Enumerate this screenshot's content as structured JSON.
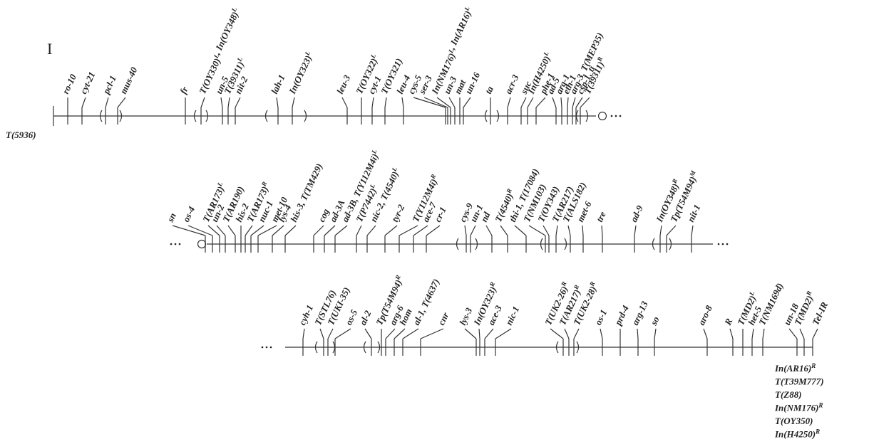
{
  "chromosome": "I",
  "left_note": "T(5936)",
  "rows": [
    {
      "loci": [
        "ro-10",
        "cyt-21",
        "pcl-1",
        "mus-40",
        "fr",
        [
          [
            "T(OY330)",
            "L"
          ],
          [
            ", In(OY348)",
            "L"
          ]
        ],
        "un-5",
        [
          [
            "T(39311)",
            "L"
          ]
        ],
        "nit-2",
        "lah-1",
        [
          [
            "In(OY323)",
            "L"
          ]
        ],
        "leu-3",
        [
          [
            "T(OY322)",
            "L"
          ]
        ],
        "cyt-1",
        "T(OY321)",
        "leu-4",
        "cys-5",
        "ser-3",
        [
          [
            "In(NM176)",
            "L"
          ],
          [
            ", In(AR16)",
            "L"
          ]
        ],
        "un-3",
        "mat",
        "un-16",
        "ta",
        "acr-3",
        "suc",
        [
          [
            "In(H4250)",
            "L"
          ]
        ],
        "phe-1",
        "ad-5",
        "arg-1",
        "eth-1",
        "arg-3, T(MEP35)",
        "csp-1, ti",
        [
          [
            "T(39311)",
            "R"
          ]
        ]
      ]
    },
    {
      "loci": [
        "sn",
        "os-4",
        [
          [
            "T(AR173)",
            "L"
          ]
        ],
        "un-2",
        "T(AR190)",
        "his-2",
        [
          [
            "T(AR173)",
            "R"
          ]
        ],
        "nuc-1",
        "met-10",
        "lys-4",
        "his-3, T(TM429)",
        "cog",
        "ad-3A",
        [
          [
            "ad-3B, T(Y112M4i)",
            "L"
          ]
        ],
        [
          [
            "T(P7442)",
            "L"
          ]
        ],
        [
          [
            "nic-2, T(4540)",
            "L"
          ]
        ],
        "tyr-2",
        [
          [
            "T(Y112M4i)",
            "R"
          ]
        ],
        "ace-7",
        "cr-1",
        "cys-9",
        "un-1",
        "nd",
        [
          [
            "T(4540)",
            "R"
          ]
        ],
        "thi-1, T(17084)",
        "T(NM103)",
        "T(OY343)",
        "T(AR217)",
        "T(ALS182)",
        "met-6",
        "tre",
        "ad-9",
        [
          [
            "In(OY348)",
            "R"
          ]
        ],
        [
          [
            "Tp(T54M94)",
            "M"
          ]
        ],
        "nit-1"
      ]
    },
    {
      "loci": [
        "cyh-1",
        "T(STL76)",
        "T(UKI-35)",
        "os-5",
        "al-2",
        [
          [
            "Tp(T54M94)",
            "R"
          ]
        ],
        "arg-6",
        "hom",
        "al-1, T(4637)",
        "cnr",
        "lys-3",
        [
          [
            "In(OY323)",
            "R"
          ]
        ],
        "ace-3",
        "nic-1",
        [
          [
            "T(UK2-26)",
            "R"
          ]
        ],
        [
          [
            "T(AR217)",
            "R"
          ]
        ],
        [
          [
            "T(UK2-28)",
            "R"
          ]
        ],
        "os-1",
        "prd-4",
        "arg-13",
        "so",
        "aro-8",
        "R",
        [
          [
            "T(MD2)",
            "L"
          ]
        ],
        "het-5",
        "T(NM169d)",
        "un-18",
        [
          [
            "T(MD2)",
            "R"
          ]
        ],
        "Tel-IR"
      ]
    }
  ],
  "right_notes": [
    [
      [
        "In(AR16)",
        "R"
      ]
    ],
    "T(T39M777)",
    "T(Z88)",
    [
      [
        "In(NM176)",
        "R"
      ]
    ],
    "T(OY350)",
    [
      [
        "In(H4250)",
        "R"
      ]
    ]
  ]
}
